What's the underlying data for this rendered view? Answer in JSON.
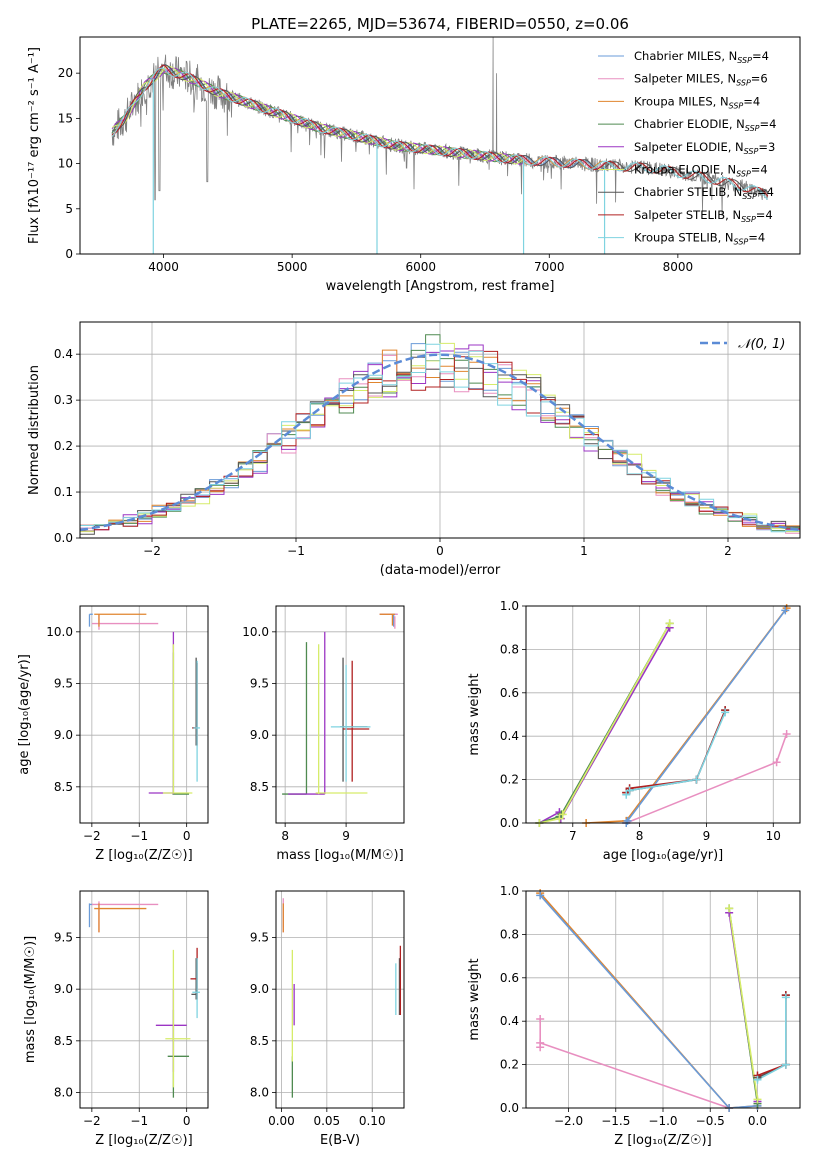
{
  "figure_title": "PLATE=2265, MJD=53674, FIBERID=0550, z=0.06",
  "colors": {
    "Chabrier MILES": "#6a9bd8",
    "Salpeter MILES": "#e88fc0",
    "Kroupa MILES": "#e0852e",
    "Chabrier ELODIE": "#4f8a50",
    "Salpeter ELODIE": "#9b35c4",
    "Kroupa ELODIE": "#d6ec6a",
    "Chabrier STELIB": "#555555",
    "Salpeter STELIB": "#b02020",
    "Kroupa STELIB": "#7fd3e0",
    "data": "#808080",
    "gaussian": "#5b8bd6"
  },
  "chart_data": [
    {
      "id": "spectrum",
      "type": "line",
      "title": "PLATE=2265, MJD=53674, FIBERID=0550, z=0.06",
      "xlabel": "wavelength [Angstrom, rest frame]",
      "ylabel": "Flux [fλ10⁻¹⁷ erg cm⁻² s⁻¹ A⁻¹]",
      "xlim": [
        3350,
        8950
      ],
      "ylim": [
        0,
        24
      ],
      "xticks": [
        4000,
        5000,
        6000,
        7000,
        8000
      ],
      "yticks": [
        0,
        5,
        10,
        15,
        20
      ],
      "grid": false,
      "legend_position": "top-right",
      "series": [
        {
          "name": "Chabrier MILES, N_SSP=4"
        },
        {
          "name": "Salpeter MILES, N_SSP=6"
        },
        {
          "name": "Kroupa MILES, N_SSP=4"
        },
        {
          "name": "Chabrier ELODIE, N_SSP=4"
        },
        {
          "name": "Salpeter ELODIE, N_SSP=3"
        },
        {
          "name": "Kroupa ELODIE, N_SSP=4"
        },
        {
          "name": "Chabrier STELIB, N_SSP=4"
        },
        {
          "name": "Salpeter STELIB, N_SSP=4"
        },
        {
          "name": "Kroupa STELIB, N_SSP=4"
        }
      ],
      "continuum": {
        "x": [
          3600,
          3700,
          3850,
          4000,
          4200,
          4400,
          4600,
          4800,
          5000,
          5200,
          5500,
          5800,
          6100,
          6400,
          6700,
          7000,
          7400,
          7800,
          8200,
          8500,
          8700
        ],
        "y": [
          13.5,
          15,
          18.5,
          20.5,
          19.5,
          18,
          17,
          16,
          15,
          14,
          13,
          12,
          11.5,
          11,
          10.5,
          10.2,
          9.8,
          9.5,
          8.5,
          7.5,
          6.5
        ]
      },
      "dips": [
        {
          "x": 3920,
          "y": 0
        },
        {
          "x": 5660,
          "y": 0
        },
        {
          "x": 6800,
          "y": 0
        },
        {
          "x": 7430,
          "y": 0
        }
      ],
      "emission": [
        {
          "x": 6563,
          "y": 24
        },
        {
          "x": 6590,
          "y": 20
        }
      ]
    },
    {
      "id": "residual_histogram",
      "type": "line",
      "xlabel": "(data-model)/error",
      "ylabel": "Normed distribution",
      "xlim": [
        -2.5,
        2.5
      ],
      "ylim": [
        0,
        0.47
      ],
      "xticks": [
        -2,
        -1,
        0,
        1,
        2
      ],
      "yticks": [
        0,
        0.1,
        0.2,
        0.3,
        0.4
      ],
      "grid": true,
      "legend": "𝒩(0, 1)",
      "legend_position": "top-right",
      "bin_width": 0.1
    },
    {
      "id": "age_vs_Z",
      "type": "scatter",
      "xlabel": "Z [log₁₀(Z/Z☉)]",
      "ylabel": "age  [log₁₀(age/yr)]",
      "xlim": [
        -2.25,
        0.45
      ],
      "ylim": [
        8.15,
        10.25
      ],
      "xticks": [
        -2,
        -1,
        0
      ],
      "yticks": [
        8.5,
        9.0,
        9.5,
        10.0
      ],
      "grid": true,
      "elements": [
        {
          "model": "Chabrier MILES",
          "hseg": [
            -2.05,
            -1.98,
            10.17
          ],
          "vseg": [
            -2.05,
            10.05,
            10.17
          ]
        },
        {
          "model": "Salpeter MILES",
          "hseg": [
            -2.0,
            -0.6,
            10.08
          ],
          "vseg": [
            -1.85,
            10.02,
            10.17
          ]
        },
        {
          "model": "Kroupa MILES",
          "hseg": [
            -1.95,
            -0.85,
            10.17
          ],
          "vseg": [
            -1.85,
            10.05,
            10.17
          ]
        },
        {
          "model": "Chabrier ELODIE",
          "hseg": [
            -0.3,
            0.05,
            8.43
          ],
          "vseg": [
            -0.28,
            8.43,
            9.8
          ]
        },
        {
          "model": "Salpeter ELODIE",
          "hseg": [
            -0.8,
            -0.28,
            8.44
          ],
          "vseg": [
            -0.28,
            8.43,
            10.0
          ]
        },
        {
          "model": "Kroupa ELODIE",
          "hseg": [
            -0.5,
            0.12,
            8.44
          ],
          "vseg": [
            -0.28,
            8.44,
            9.88
          ]
        },
        {
          "model": "Chabrier STELIB",
          "hseg": [
            0.12,
            0.24,
            9.07
          ],
          "vseg": [
            0.2,
            8.9,
            9.75
          ]
        },
        {
          "model": "Salpeter STELIB",
          "hseg": [
            0.12,
            0.22,
            9.07
          ],
          "vseg": [
            0.22,
            8.9,
            9.7
          ]
        },
        {
          "model": "Kroupa STELIB",
          "hseg": [
            0.14,
            0.28,
            9.07
          ],
          "vseg": [
            0.22,
            8.55,
            9.72
          ]
        }
      ]
    },
    {
      "id": "age_vs_mass",
      "type": "scatter",
      "xlabel": "mass [log₁₀(M/M☉)]",
      "ylabel": "",
      "xlim": [
        7.85,
        9.95
      ],
      "ylim": [
        8.15,
        10.25
      ],
      "xticks": [
        8,
        9
      ],
      "yticks": [
        8.5,
        9.0,
        9.5,
        10.0
      ],
      "grid": true,
      "elements": [
        {
          "model": "Chabrier MILES",
          "hseg": [
            9.55,
            9.83,
            10.17
          ],
          "vseg": [
            9.78,
            10.05,
            10.17
          ]
        },
        {
          "model": "Salpeter MILES",
          "hseg": [
            9.55,
            9.85,
            10.17
          ],
          "vseg": [
            9.8,
            10.03,
            10.15
          ]
        },
        {
          "model": "Kroupa MILES",
          "hseg": [
            9.55,
            9.8,
            10.17
          ],
          "vseg": [
            9.76,
            10.06,
            10.17
          ]
        },
        {
          "model": "Chabrier ELODIE",
          "hseg": [
            7.95,
            8.35,
            8.43
          ],
          "vseg": [
            8.35,
            8.43,
            9.9
          ]
        },
        {
          "model": "Salpeter ELODIE",
          "hseg": [
            8.05,
            8.65,
            8.43
          ],
          "vseg": [
            8.65,
            8.43,
            10.0
          ]
        },
        {
          "model": "Kroupa ELODIE",
          "hseg": [
            8.5,
            9.35,
            8.44
          ],
          "vseg": [
            8.55,
            8.43,
            9.88
          ]
        },
        {
          "model": "Chabrier STELIB",
          "hseg": [
            8.9,
            9.35,
            9.08
          ],
          "vseg": [
            8.95,
            8.55,
            9.75
          ]
        },
        {
          "model": "Salpeter STELIB",
          "hseg": [
            8.95,
            9.38,
            9.06
          ],
          "vseg": [
            9.1,
            8.55,
            9.72
          ]
        },
        {
          "model": "Kroupa STELIB",
          "hseg": [
            8.75,
            9.4,
            9.08
          ],
          "vseg": [
            9.0,
            8.55,
            9.68
          ]
        }
      ]
    },
    {
      "id": "mass_weight_vs_age",
      "type": "line",
      "xlabel": "age  [log₁₀(age/yr)]",
      "ylabel": "mass weight",
      "xlim": [
        6.3,
        10.4
      ],
      "ylim": [
        0,
        1.0
      ],
      "xticks": [
        7,
        8,
        9,
        10
      ],
      "yticks": [
        0.0,
        0.2,
        0.4,
        0.6,
        0.8,
        1.0
      ],
      "grid": true,
      "series": [
        {
          "model": "Salpeter MILES",
          "x": [
            7.8,
            10.05,
            10.2
          ],
          "y": [
            0.0,
            0.28,
            0.41
          ]
        },
        {
          "model": "Kroupa MILES",
          "x": [
            7.2,
            7.8,
            10.2
          ],
          "y": [
            0.0,
            0.01,
            0.99
          ]
        },
        {
          "model": "Chabrier MILES",
          "x": [
            7.8,
            7.82,
            10.18
          ],
          "y": [
            0.0,
            0.01,
            0.98
          ]
        },
        {
          "model": "Chabrier STELIB",
          "x": [
            7.8,
            7.85,
            8.85,
            9.28
          ],
          "y": [
            0.14,
            0.15,
            0.2,
            0.52
          ]
        },
        {
          "model": "Salpeter STELIB",
          "x": [
            7.8,
            7.85,
            8.85,
            9.28
          ],
          "y": [
            0.14,
            0.16,
            0.2,
            0.52
          ]
        },
        {
          "model": "Kroupa STELIB",
          "x": [
            7.8,
            7.85,
            8.85,
            9.28
          ],
          "y": [
            0.13,
            0.15,
            0.2,
            0.51
          ]
        },
        {
          "model": "Salpeter ELODIE",
          "x": [
            6.5,
            6.8,
            6.82,
            8.45
          ],
          "y": [
            0.0,
            0.05,
            0.02,
            0.9
          ]
        },
        {
          "model": "Chabrier ELODIE",
          "x": [
            6.5,
            6.8,
            6.83,
            8.45
          ],
          "y": [
            0.0,
            0.03,
            0.04,
            0.92
          ]
        },
        {
          "model": "Kroupa ELODIE",
          "x": [
            6.5,
            6.8,
            6.85,
            8.45
          ],
          "y": [
            0.0,
            0.02,
            0.04,
            0.92
          ]
        }
      ]
    },
    {
      "id": "mass_vs_Z",
      "type": "scatter",
      "xlabel": "Z [log₁₀(Z/Z☉)]",
      "ylabel": "mass [log₁₀(M/M☉)]",
      "xlim": [
        -2.25,
        0.45
      ],
      "ylim": [
        7.85,
        9.95
      ],
      "xticks": [
        -2,
        -1,
        0
      ],
      "yticks": [
        8.0,
        8.5,
        9.0,
        9.5
      ],
      "grid": true,
      "elements": [
        {
          "model": "Chabrier MILES",
          "hseg": [
            -2.05,
            -1.98,
            9.82
          ],
          "vseg": [
            -2.05,
            9.6,
            9.83
          ]
        },
        {
          "model": "Salpeter MILES",
          "hseg": [
            -2.0,
            -0.6,
            9.82
          ],
          "vseg": [
            -1.85,
            9.55,
            9.85
          ]
        },
        {
          "model": "Kroupa MILES",
          "hseg": [
            -1.95,
            -0.85,
            9.78
          ],
          "vseg": [
            -1.85,
            9.55,
            9.83
          ]
        },
        {
          "model": "Chabrier ELODIE",
          "hseg": [
            -0.4,
            0.05,
            8.35
          ],
          "vseg": [
            -0.28,
            7.95,
            8.8
          ]
        },
        {
          "model": "Salpeter ELODIE",
          "hseg": [
            -0.65,
            -0.0,
            8.65
          ],
          "vseg": [
            -0.28,
            8.2,
            9.0
          ]
        },
        {
          "model": "Kroupa ELODIE",
          "hseg": [
            -0.45,
            0.08,
            8.52
          ],
          "vseg": [
            -0.28,
            8.05,
            9.38
          ]
        },
        {
          "model": "Chabrier STELIB",
          "hseg": [
            0.1,
            0.22,
            8.95
          ],
          "vseg": [
            0.2,
            8.9,
            9.3
          ]
        },
        {
          "model": "Salpeter STELIB",
          "hseg": [
            0.08,
            0.2,
            9.1
          ],
          "vseg": [
            0.22,
            8.9,
            9.4
          ]
        },
        {
          "model": "Kroupa STELIB",
          "hseg": [
            0.12,
            0.28,
            8.97
          ],
          "vseg": [
            0.22,
            8.72,
            9.3
          ]
        }
      ]
    },
    {
      "id": "mass_vs_ebv",
      "type": "scatter",
      "xlabel": "E(B-V)",
      "ylabel": "",
      "xlim": [
        -0.006,
        0.135
      ],
      "ylim": [
        7.85,
        9.95
      ],
      "xticks": [
        0.0,
        0.05,
        0.1
      ],
      "xtick_labels": [
        "0.00",
        "0.05",
        "0.10"
      ],
      "yticks": [
        8.0,
        8.5,
        9.0,
        9.5
      ],
      "grid": true,
      "elements": [
        {
          "model": "Chabrier MILES",
          "vseg": [
            0.002,
            9.6,
            9.83
          ]
        },
        {
          "model": "Salpeter MILES",
          "vseg": [
            0.002,
            9.55,
            9.88
          ]
        },
        {
          "model": "Kroupa MILES",
          "vseg": [
            0.002,
            9.55,
            9.83
          ]
        },
        {
          "model": "Chabrier ELODIE",
          "vseg": [
            0.012,
            7.95,
            8.35
          ]
        },
        {
          "model": "Salpeter ELODIE",
          "vseg": [
            0.014,
            8.65,
            9.05
          ]
        },
        {
          "model": "Kroupa ELODIE",
          "vseg": [
            0.012,
            8.3,
            9.38
          ]
        },
        {
          "model": "Chabrier STELIB",
          "vseg": [
            0.13,
            8.75,
            9.3
          ]
        },
        {
          "model": "Salpeter STELIB",
          "vseg": [
            0.131,
            8.75,
            9.42
          ]
        },
        {
          "model": "Kroupa STELIB",
          "vseg": [
            0.126,
            8.75,
            9.25
          ]
        }
      ]
    },
    {
      "id": "mass_weight_vs_Z",
      "type": "line",
      "xlabel": "Z [log₁₀(Z/Z☉)]",
      "ylabel": "mass weight",
      "xlim": [
        -2.45,
        0.45
      ],
      "ylim": [
        0,
        1.0
      ],
      "xticks": [
        -2.0,
        -1.5,
        -1.0,
        -0.5,
        0.0
      ],
      "xtick_labels": [
        "−2.0",
        "−1.5",
        "−1.0",
        "−0.5",
        "0.0"
      ],
      "yticks": [
        0.0,
        0.2,
        0.4,
        0.6,
        0.8,
        1.0
      ],
      "grid": true,
      "series": [
        {
          "model": "Salpeter MILES",
          "x": [
            -2.3,
            -2.3,
            -2.3,
            -0.3
          ],
          "y": [
            0.41,
            0.28,
            0.3,
            0.0
          ]
        },
        {
          "model": "Kroupa MILES",
          "x": [
            -2.3,
            -0.3,
            0.0
          ],
          "y": [
            0.99,
            0.0,
            0.01
          ]
        },
        {
          "model": "Chabrier MILES",
          "x": [
            -2.3,
            -0.3,
            0.0
          ],
          "y": [
            0.98,
            0.0,
            0.01
          ]
        },
        {
          "model": "Chabrier STELIB",
          "x": [
            0.0,
            0.3,
            0.3
          ],
          "y": [
            0.14,
            0.2,
            0.52
          ]
        },
        {
          "model": "Salpeter STELIB",
          "x": [
            0.0,
            0.3,
            0.3
          ],
          "y": [
            0.15,
            0.2,
            0.52
          ]
        },
        {
          "model": "Kroupa STELIB",
          "x": [
            0.0,
            0.3,
            0.3
          ],
          "y": [
            0.13,
            0.2,
            0.51
          ]
        },
        {
          "model": "Salpeter ELODIE",
          "x": [
            -0.3,
            0.0
          ],
          "y": [
            0.9,
            0.03
          ]
        },
        {
          "model": "Chabrier ELODIE",
          "x": [
            -0.3,
            0.0
          ],
          "y": [
            0.92,
            0.02
          ]
        },
        {
          "model": "Kroupa ELODIE",
          "x": [
            -0.3,
            0.0
          ],
          "y": [
            0.92,
            0.04
          ]
        }
      ]
    }
  ]
}
